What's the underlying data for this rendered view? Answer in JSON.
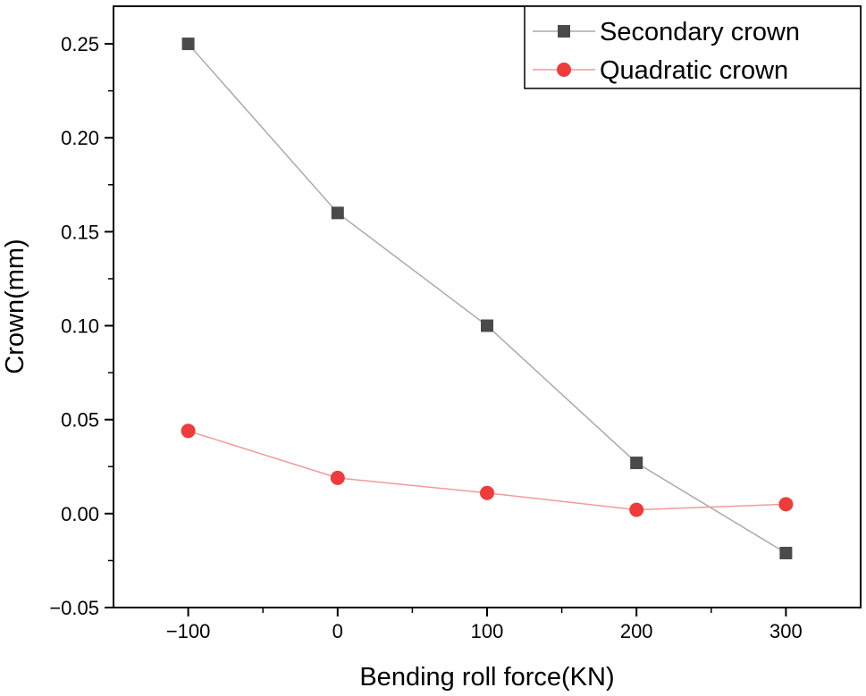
{
  "chart_data": {
    "type": "line",
    "title": "",
    "xlabel": "Bending roll force(KN)",
    "ylabel": "Crown(mm)",
    "x": [
      -100,
      0,
      100,
      200,
      300
    ],
    "xlim": [
      -150,
      350
    ],
    "ylim": [
      -0.05,
      0.27
    ],
    "xticks": [
      -100,
      0,
      100,
      200,
      300
    ],
    "xtick_labels": [
      "−100",
      "0",
      "100",
      "200",
      "300"
    ],
    "yticks": [
      -0.05,
      0,
      0.05,
      0.1,
      0.15,
      0.2,
      0.25
    ],
    "ytick_labels": [
      "−0.05",
      "0.00",
      "0.05",
      "0.10",
      "0.15",
      "0.20",
      "0.25"
    ],
    "grid": false,
    "legend_position": "top-right",
    "series": [
      {
        "name": "Secondary crown",
        "marker": "square",
        "line_color": "#aaaaaa",
        "marker_color": "#4a4a4a",
        "values": [
          0.25,
          0.16,
          0.1,
          0.027,
          -0.021
        ]
      },
      {
        "name": "Quadratic crown",
        "marker": "circle",
        "line_color": "#f29a9a",
        "marker_color": "#ee3b3b",
        "values": [
          0.044,
          0.019,
          0.011,
          0.002,
          0.005
        ]
      }
    ]
  }
}
